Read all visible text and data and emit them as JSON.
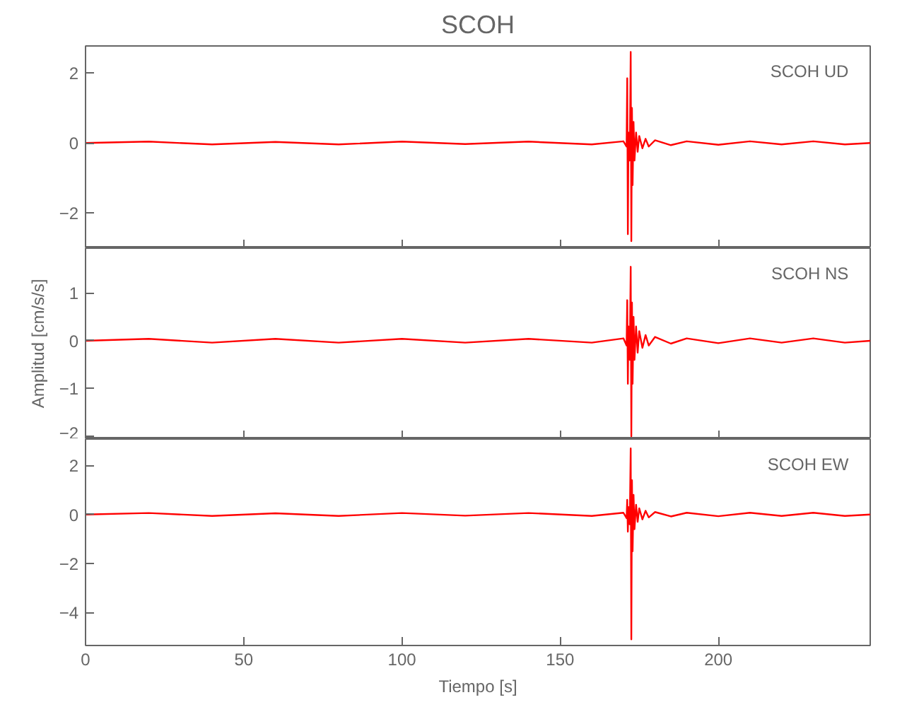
{
  "chart_data": [
    {
      "type": "line",
      "title": "SCOH",
      "annotations": [
        "SCOH  UD"
      ],
      "xlim": [
        0,
        248
      ],
      "xticks": [
        0,
        50,
        100,
        150,
        200
      ],
      "ylim": [
        -3.0,
        2.77
      ],
      "yticks": [
        -2,
        0,
        2
      ],
      "tick_labels": "y",
      "series": [
        {
          "color": "#ff0000",
          "x": [
            0,
            20,
            40,
            60,
            80,
            100,
            120,
            140,
            160,
            170,
            171.0,
            171.2,
            171.4,
            171.6,
            172.0,
            172.3,
            172.5,
            172.7,
            172.9,
            173.2,
            173.5,
            174,
            174.5,
            175,
            176,
            177,
            178,
            180,
            185,
            190,
            200,
            210,
            220,
            230,
            240,
            248
          ],
          "values": [
            0,
            0.04,
            -0.04,
            0.03,
            -0.04,
            0.04,
            -0.03,
            0.04,
            -0.04,
            0.05,
            -0.1,
            1.85,
            -2.6,
            0.3,
            -0.5,
            2.6,
            -2.8,
            1.0,
            -1.2,
            0.6,
            -0.5,
            0.3,
            -0.25,
            0.2,
            -0.15,
            0.12,
            -0.1,
            0.08,
            -0.06,
            0.05,
            -0.05,
            0.05,
            -0.04,
            0.05,
            -0.04,
            0
          ]
        }
      ]
    },
    {
      "type": "line",
      "ylabel": "Amplitud [cm/s/s]",
      "annotations": [
        "SCOH  NS"
      ],
      "xlim": [
        0,
        248
      ],
      "xticks": [
        0,
        50,
        100,
        150,
        200
      ],
      "ylim": [
        -2.06,
        1.94
      ],
      "yticks": [
        -2,
        -1,
        0,
        1
      ],
      "tick_labels": "y",
      "series": [
        {
          "color": "#ff0000",
          "x": [
            0,
            20,
            40,
            60,
            80,
            100,
            120,
            140,
            160,
            170,
            171.0,
            171.2,
            171.4,
            171.6,
            172.0,
            172.3,
            172.5,
            172.7,
            172.9,
            173.2,
            173.5,
            174,
            174.5,
            175,
            176,
            177,
            178,
            180,
            185,
            190,
            200,
            210,
            220,
            230,
            240,
            248
          ],
          "values": [
            0,
            0.04,
            -0.04,
            0.04,
            -0.04,
            0.04,
            -0.04,
            0.04,
            -0.04,
            0.05,
            -0.1,
            0.85,
            -0.9,
            0.3,
            -0.4,
            1.55,
            -2.0,
            0.8,
            -0.9,
            0.5,
            -0.4,
            0.3,
            -0.25,
            0.2,
            -0.15,
            0.12,
            -0.1,
            0.08,
            -0.06,
            0.05,
            -0.05,
            0.05,
            -0.04,
            0.05,
            -0.04,
            0
          ]
        }
      ]
    },
    {
      "type": "line",
      "xlabel": "Tiempo [s]",
      "annotations": [
        "SCOH  EW"
      ],
      "xlim": [
        0,
        248
      ],
      "xticks": [
        0,
        50,
        100,
        150,
        200
      ],
      "ylim": [
        -5.35,
        3.08
      ],
      "yticks": [
        -4,
        -2,
        0,
        2
      ],
      "series": [
        {
          "color": "#ff0000",
          "x": [
            0,
            20,
            40,
            60,
            80,
            100,
            120,
            140,
            160,
            170,
            171.0,
            171.2,
            171.4,
            171.6,
            172.0,
            172.3,
            172.5,
            172.7,
            172.9,
            173.2,
            173.5,
            174,
            174.5,
            175,
            176,
            177,
            178,
            180,
            185,
            190,
            200,
            210,
            220,
            230,
            240,
            248
          ],
          "values": [
            0,
            0.06,
            -0.06,
            0.05,
            -0.06,
            0.06,
            -0.05,
            0.06,
            -0.06,
            0.07,
            -0.15,
            0.6,
            -0.7,
            0.3,
            -0.4,
            2.7,
            -5.1,
            1.4,
            -1.5,
            0.8,
            -0.6,
            0.4,
            -0.3,
            0.25,
            -0.2,
            0.15,
            -0.12,
            0.1,
            -0.08,
            0.07,
            -0.07,
            0.07,
            -0.06,
            0.07,
            -0.06,
            0
          ]
        }
      ]
    }
  ]
}
